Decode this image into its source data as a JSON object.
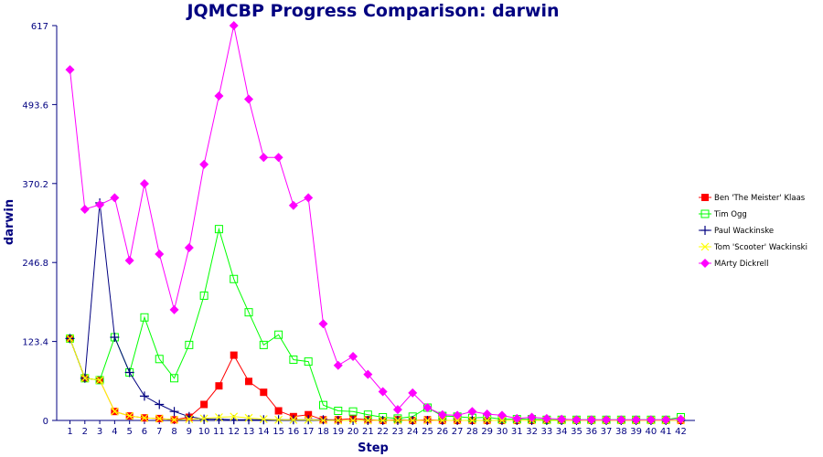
{
  "chart_data": {
    "type": "line",
    "title": "JQMCBP Progress Comparison: darwin",
    "xlabel": "Step",
    "ylabel": "darwin",
    "x": [
      1,
      2,
      3,
      4,
      5,
      6,
      7,
      8,
      9,
      10,
      11,
      12,
      13,
      14,
      15,
      16,
      17,
      18,
      19,
      20,
      21,
      22,
      23,
      24,
      25,
      26,
      27,
      28,
      29,
      30,
      31,
      32,
      33,
      34,
      35,
      36,
      37,
      38,
      39,
      40,
      41,
      42
    ],
    "xtick_labels": [
      "1",
      "2",
      "3",
      "4",
      "5",
      "6",
      "7",
      "8",
      "9",
      "10",
      "11",
      "12",
      "13",
      "14",
      "15",
      "16",
      "17",
      "18",
      "19",
      "20",
      "21",
      "22",
      "23",
      "24",
      "25",
      "26",
      "27",
      "28",
      "29",
      "30",
      "31",
      "32",
      "33",
      "34",
      "35",
      "36",
      "37",
      "38",
      "39",
      "40",
      "41",
      "42"
    ],
    "ylim": [
      0,
      617
    ],
    "yticks": [
      0,
      123.4,
      246.8,
      370.2,
      493.6,
      617
    ],
    "ytick_labels": [
      "0",
      "123.4",
      "246.8",
      "370.2",
      "493.6",
      "617"
    ],
    "grid": false,
    "legend_position": "right",
    "series": [
      {
        "name": "Ben 'The Meister' Klaas",
        "color": "#ff0000",
        "marker": "square-filled",
        "values": [
          128,
          66,
          63,
          14,
          7,
          4,
          3,
          1,
          5,
          25,
          54,
          102,
          61,
          44,
          15,
          6,
          9,
          1,
          1,
          3,
          1,
          0,
          1,
          0,
          1,
          0,
          0,
          0,
          0,
          0,
          0,
          0,
          0,
          0,
          0,
          0,
          0,
          0,
          0,
          0,
          0,
          0
        ]
      },
      {
        "name": "Tim Ogg",
        "color": "#00ff00",
        "marker": "square-open",
        "values": [
          128,
          66,
          63,
          130,
          75,
          161,
          96,
          66,
          118,
          195,
          299,
          221,
          169,
          118,
          134,
          95,
          92,
          24,
          15,
          14,
          9,
          5,
          3,
          6,
          20,
          7,
          6,
          4,
          5,
          2,
          2,
          2,
          1,
          1,
          1,
          1,
          1,
          1,
          1,
          1,
          1,
          5
        ]
      },
      {
        "name": "Paul Wackinske",
        "color": "#000080",
        "marker": "plus",
        "values": [
          128,
          66,
          340,
          130,
          75,
          38,
          25,
          14,
          6,
          2,
          2,
          1,
          1,
          1,
          1,
          1,
          1,
          1,
          0,
          0,
          0,
          0,
          0,
          0,
          0,
          0,
          0,
          0,
          0,
          0,
          0,
          0,
          0,
          0,
          0,
          0,
          0,
          0,
          0,
          0,
          0,
          0
        ]
      },
      {
        "name": "Tom 'Scooter' Wackinski",
        "color": "#ffff00",
        "marker": "cross",
        "values": [
          128,
          66,
          63,
          14,
          7,
          4,
          3,
          1,
          2,
          3,
          5,
          6,
          4,
          2,
          1,
          1,
          1,
          0,
          0,
          0,
          0,
          0,
          0,
          0,
          0,
          0,
          0,
          0,
          0,
          0,
          0,
          0,
          0,
          0,
          0,
          0,
          0,
          0,
          0,
          0,
          0,
          0
        ]
      },
      {
        "name": "MArty Dickrell",
        "color": "#ff00ff",
        "marker": "diamond-filled",
        "values": [
          548,
          330,
          337,
          348,
          250,
          370,
          260,
          173,
          270,
          400,
          507,
          617,
          502,
          411,
          411,
          336,
          348,
          151,
          86,
          100,
          72,
          45,
          17,
          43,
          20,
          9,
          8,
          14,
          10,
          8,
          3,
          5,
          3,
          2,
          1,
          1,
          1,
          1,
          1,
          1,
          1,
          2
        ]
      }
    ]
  }
}
